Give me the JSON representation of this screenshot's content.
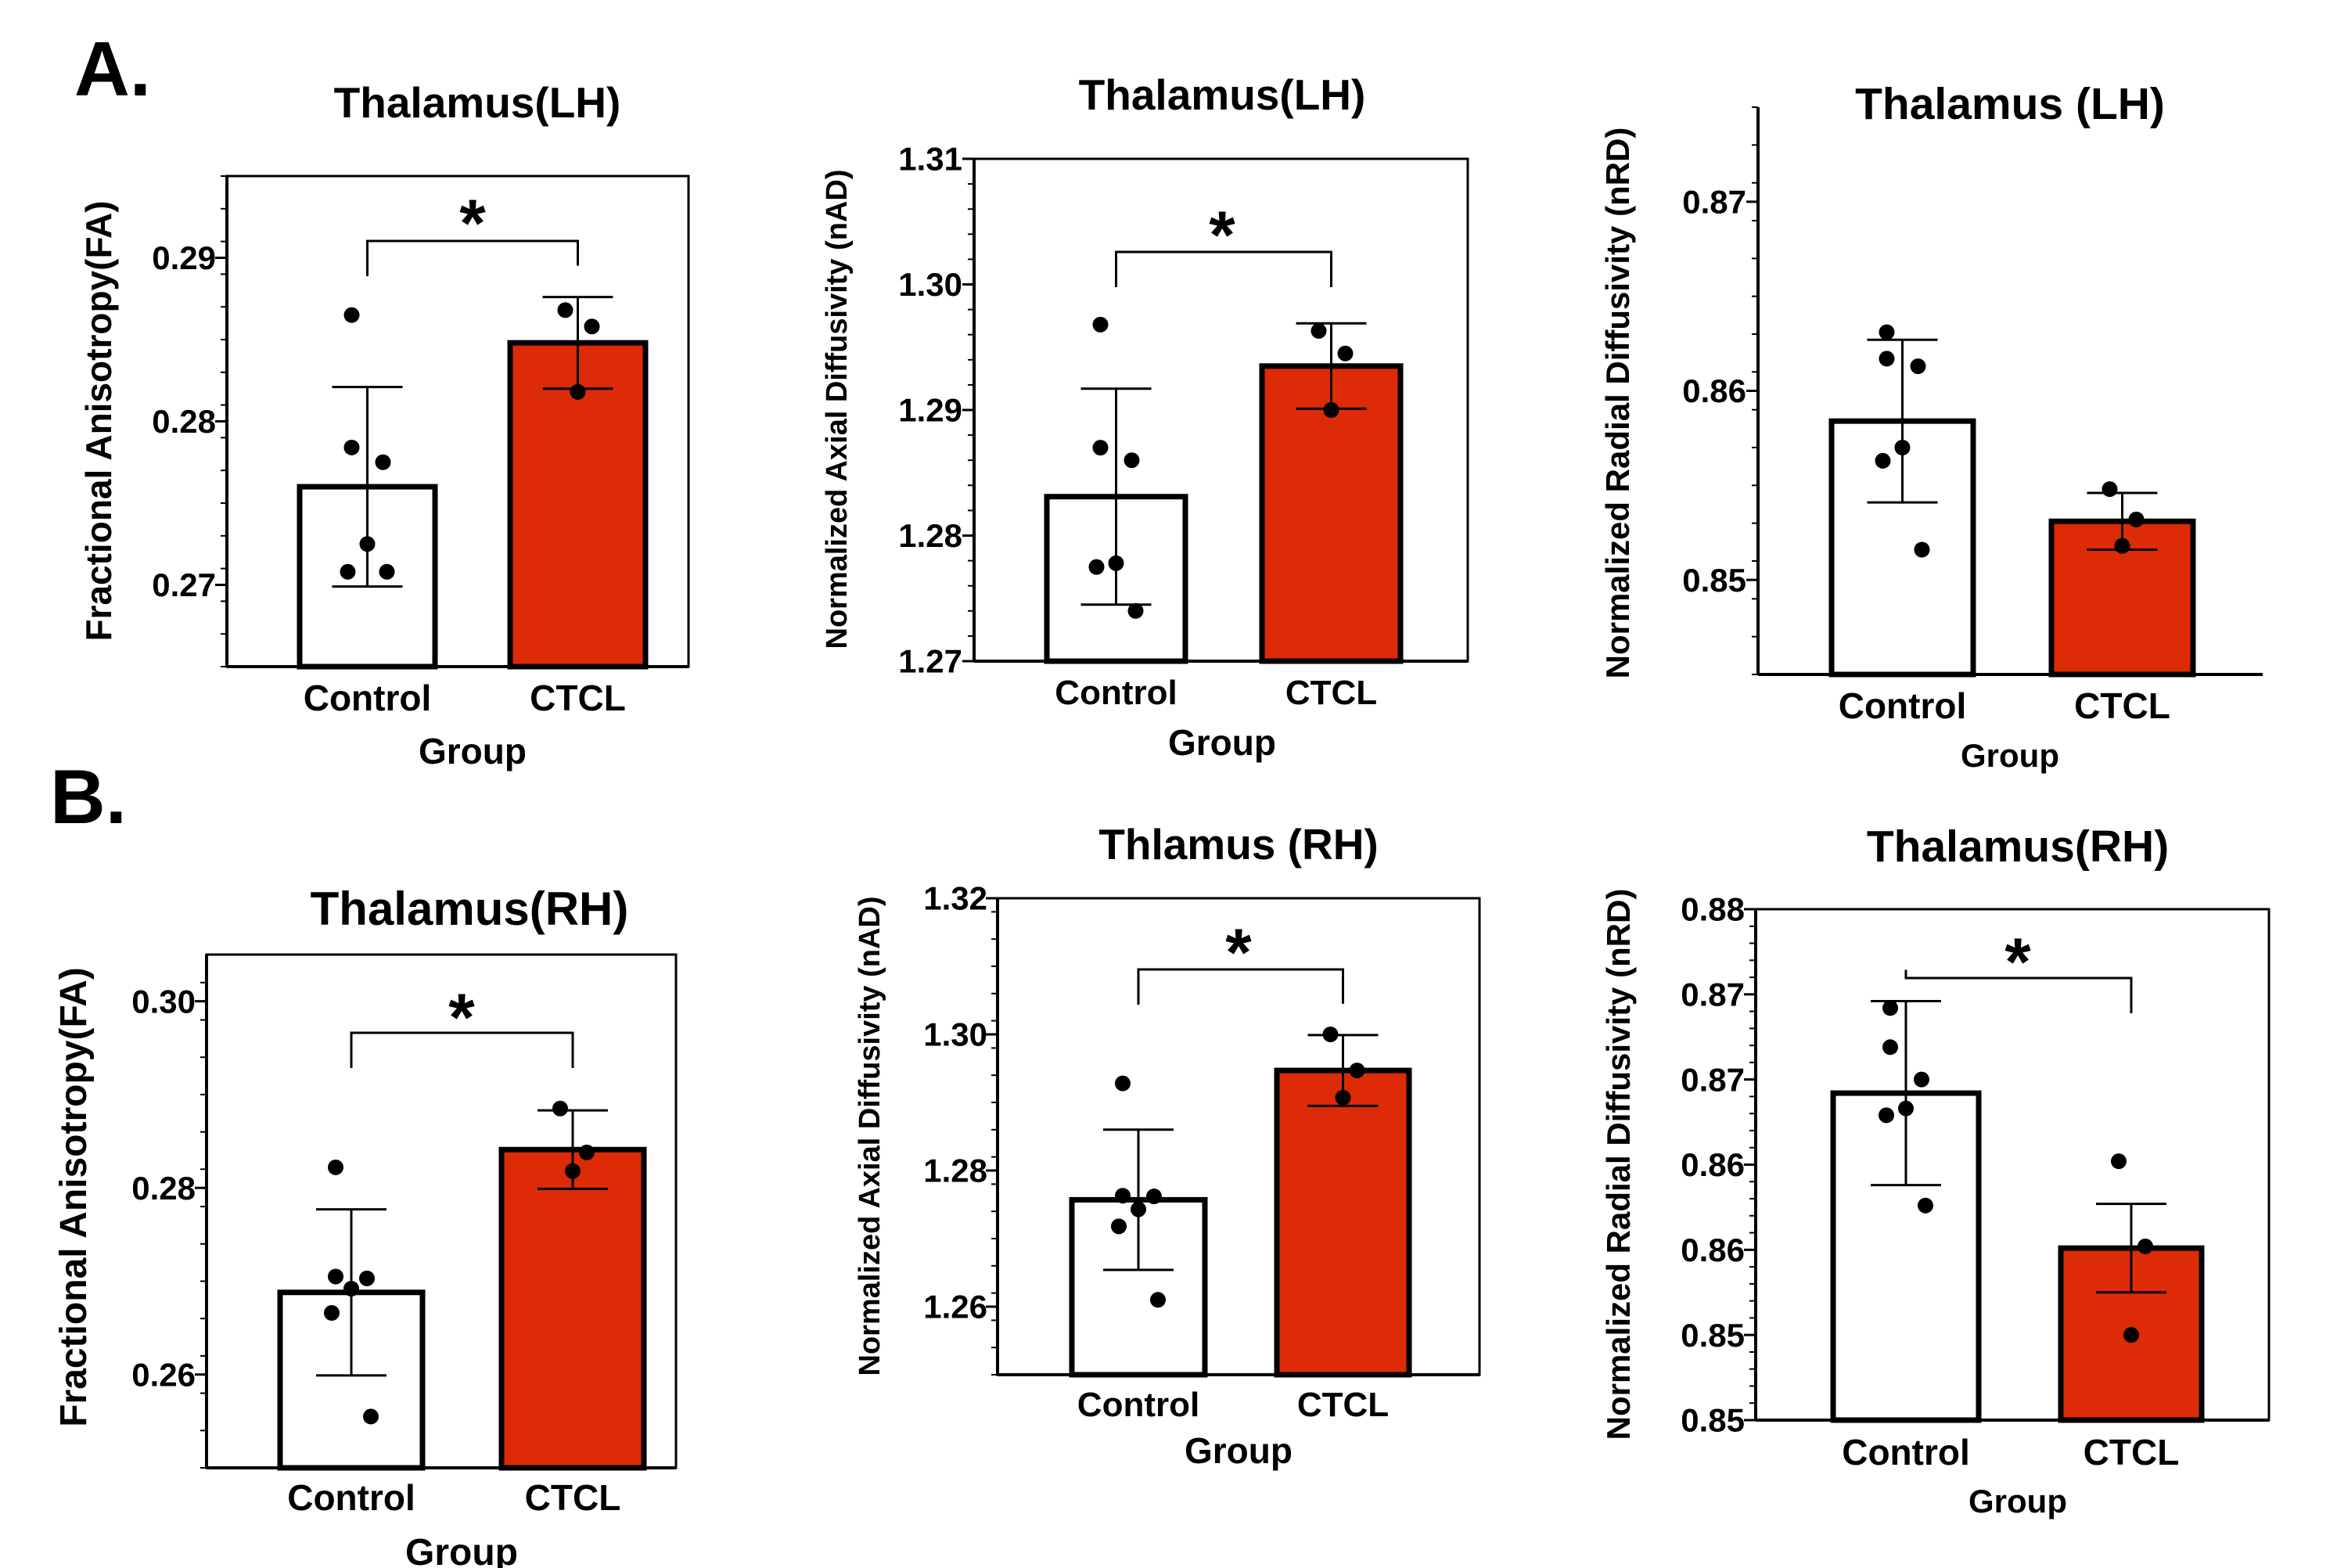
{
  "panel_labels": {
    "A": "A.",
    "B": "B."
  },
  "colors": {
    "control": "#ffffff",
    "ctcl": "#dc2b06",
    "outline": "#000000"
  },
  "chart_data": [
    {
      "type": "bar",
      "title": "Thalamus(LH)",
      "xlabel": "Group",
      "ylabel": "Fractional Anisotropy(FA)",
      "categories": [
        "Control",
        "CTCL"
      ],
      "values": [
        0.276,
        0.2848
      ],
      "sd": [
        0.0061,
        0.0028
      ],
      "points": [
        [
          0.2865,
          0.2784,
          0.2775,
          0.2725,
          0.2708,
          0.2708
        ],
        [
          0.2868,
          0.2858,
          0.2818
        ]
      ],
      "ylim": [
        0.265,
        0.295
      ],
      "yticks": [
        0.27,
        0.28,
        0.29
      ],
      "yticklabels": [
        "0.27",
        "0.28",
        "0.29"
      ],
      "significance": "*"
    },
    {
      "type": "bar",
      "title": "Thalamus(LH)",
      "xlabel": "Group",
      "ylabel": "Normalized Axial Diffusivity (nAD)",
      "categories": [
        "Control",
        "CTCL"
      ],
      "values": [
        1.2831,
        1.2935
      ],
      "sd": [
        0.0086,
        0.0034
      ],
      "points": [
        [
          1.2968,
          1.287,
          1.286,
          1.2778,
          1.2775,
          1.274
        ],
        [
          1.2963,
          1.2945,
          1.29
        ]
      ],
      "ylim": [
        1.27,
        1.31
      ],
      "yticks": [
        1.27,
        1.28,
        1.29,
        1.3,
        1.31
      ],
      "yticklabels": [
        "1.27",
        "1.28",
        "1.29",
        "1.30",
        "1.31"
      ],
      "significance": "*"
    },
    {
      "type": "bar",
      "title": "Thalamus (LH)",
      "xlabel": "Group",
      "ylabel": "Normalized Radial Diffusivity (nRD)",
      "categories": [
        "Control",
        "CTCL"
      ],
      "values": [
        0.8584,
        0.8531
      ],
      "sd": [
        0.0043,
        0.0015
      ],
      "points": [
        [
          0.8631,
          0.8617,
          0.8613,
          0.857,
          0.8563,
          0.8516
        ],
        [
          0.8548,
          0.8532,
          0.8518
        ]
      ],
      "ylim": [
        0.845,
        0.875
      ],
      "yticks": [
        0.85,
        0.86,
        0.87
      ],
      "yticklabels": [
        "0.85",
        "0.86",
        "0.87"
      ],
      "significance": ""
    },
    {
      "type": "bar",
      "title": "Thalamus(RH)",
      "xlabel": "Group",
      "ylabel": "Fractional Anisotropy(FA)",
      "categories": [
        "Control",
        "CTCL"
      ],
      "values": [
        0.2688,
        0.2841
      ],
      "sd": [
        0.0089,
        0.0042
      ],
      "points": [
        [
          0.2822,
          0.2705,
          0.2703,
          0.2692,
          0.2666,
          0.2555
        ],
        [
          0.2885,
          0.2838,
          0.2818
        ]
      ],
      "ylim": [
        0.25,
        0.305
      ],
      "yticks": [
        0.26,
        0.28,
        0.3
      ],
      "yticklabels": [
        "0.26",
        "0.28",
        "0.30"
      ],
      "significance": "*"
    },
    {
      "type": "bar",
      "title": "Thlamus (RH)",
      "xlabel": "Group",
      "ylabel": "Normalized Axial Diffusivity (nAD)",
      "categories": [
        "Control",
        "CTCL"
      ],
      "values": [
        1.2757,
        1.2947
      ],
      "sd": [
        0.0103,
        0.0052
      ],
      "points": [
        [
          1.2928,
          1.2763,
          1.2762,
          1.2743,
          1.2718,
          1.261
        ],
        [
          1.3,
          1.2947,
          1.2907
        ]
      ],
      "ylim": [
        1.25,
        1.32
      ],
      "yticks": [
        1.26,
        1.28,
        1.3,
        1.32
      ],
      "yticklabels": [
        "1.26",
        "1.28",
        "1.30",
        "1.32"
      ],
      "significance": "*"
    },
    {
      "type": "bar",
      "title": "Thalamus(RH)",
      "xlabel": "Group",
      "ylabel": "Normalized Radial Diffusivity (nRD)",
      "categories": [
        "Control",
        "CTCL"
      ],
      "values": [
        0.8642,
        0.8551
      ],
      "sd": [
        0.0054,
        0.0026
      ],
      "points": [
        [
          0.8692,
          0.8669,
          0.865,
          0.8633,
          0.8629,
          0.8576
        ],
        [
          0.8602,
          0.8552,
          0.85
        ]
      ],
      "ylim": [
        0.845,
        0.875
      ],
      "yticks": [
        0.845,
        0.85,
        0.855,
        0.86,
        0.865,
        0.87,
        0.875
      ],
      "yticklabels": [
        "0.85",
        "0.85",
        "0.86",
        "0.86",
        "0.87",
        "0.87",
        "0.88"
      ],
      "significance": "*"
    }
  ]
}
